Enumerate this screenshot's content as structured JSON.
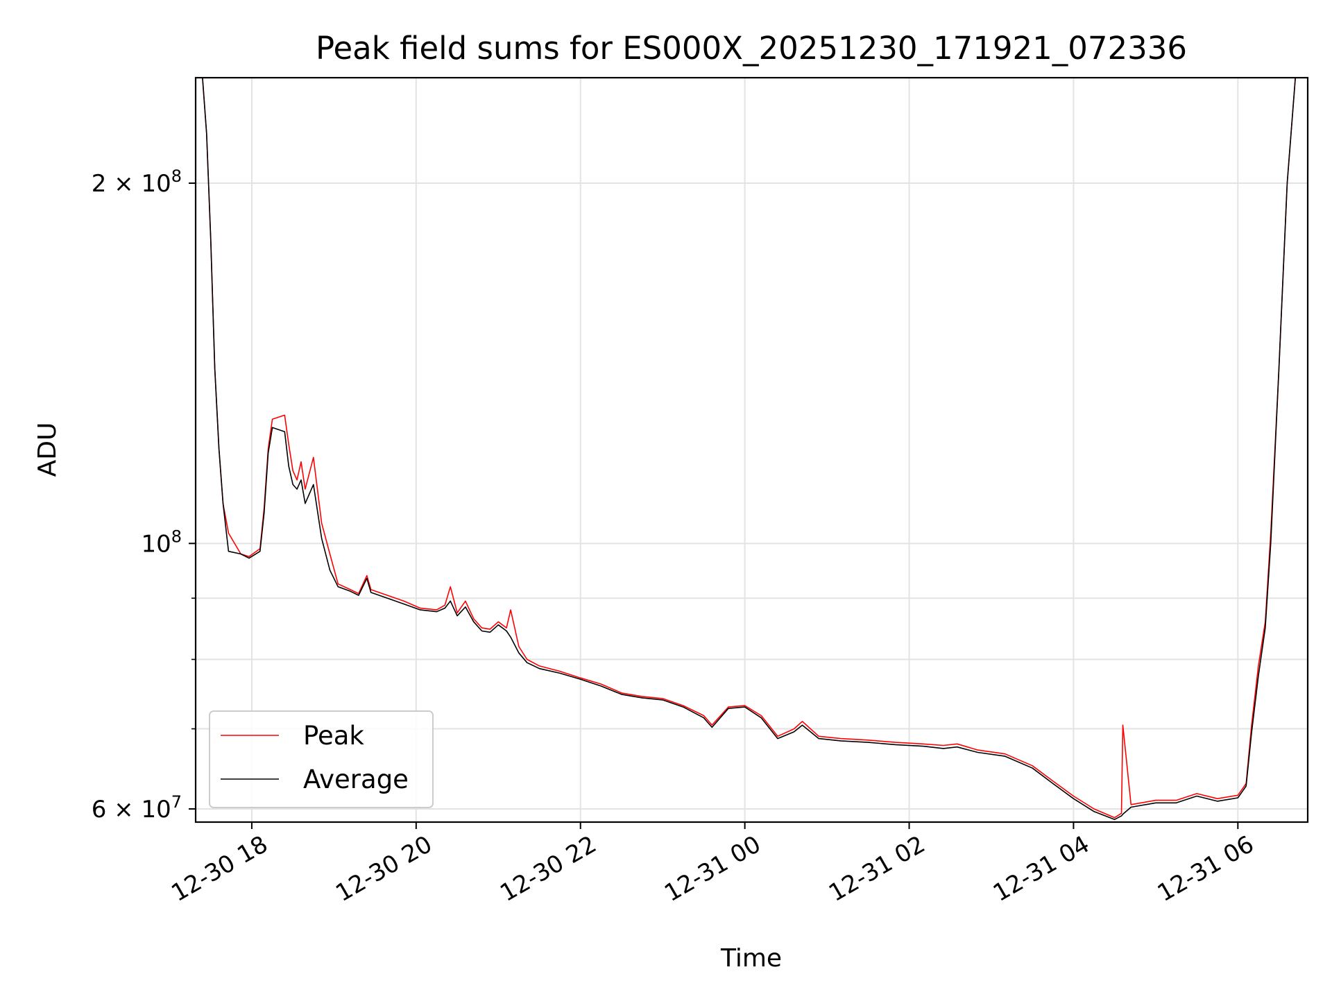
{
  "chart_data": {
    "type": "line",
    "title": "Peak field sums for ES000X_20251230_171921_072336",
    "xlabel": "Time",
    "ylabel": "ADU",
    "yscale": "log",
    "ylim": [
      58500000,
      245000000
    ],
    "xlim": [
      "2025-12-30 17:19",
      "2025-12-31 06:51"
    ],
    "grid": true,
    "legend_position": "lower-left",
    "x_ticks": [
      {
        "x": "2025-12-30 18:00",
        "label": "12-30 18"
      },
      {
        "x": "2025-12-30 20:00",
        "label": "12-30 20"
      },
      {
        "x": "2025-12-30 22:00",
        "label": "12-30 22"
      },
      {
        "x": "2025-12-31 00:00",
        "label": "12-31 00"
      },
      {
        "x": "2025-12-31 02:00",
        "label": "12-31 02"
      },
      {
        "x": "2025-12-31 04:00",
        "label": "12-31 04"
      },
      {
        "x": "2025-12-31 06:00",
        "label": "12-31 06"
      }
    ],
    "y_ticks": [
      {
        "value": 60000000,
        "label": "6 × 10",
        "exp": "7"
      },
      {
        "value": 100000000,
        "label": "10",
        "exp": "8"
      },
      {
        "value": 200000000,
        "label": "2 × 10",
        "exp": "8"
      }
    ],
    "y_minor_ticks": [
      70000000,
      80000000,
      90000000
    ],
    "series": [
      {
        "name": "Peak",
        "color": "#ff0000",
        "points": [
          [
            "2025-12-30 17:24",
            245000000
          ],
          [
            "2025-12-30 17:27",
            220000000
          ],
          [
            "2025-12-30 17:30",
            180000000
          ],
          [
            "2025-12-30 17:33",
            140000000
          ],
          [
            "2025-12-30 17:36",
            120000000
          ],
          [
            "2025-12-30 17:39",
            108000000
          ],
          [
            "2025-12-30 17:43",
            102000000
          ],
          [
            "2025-12-30 17:52",
            98000000
          ],
          [
            "2025-12-30 17:58",
            97500000
          ],
          [
            "2025-12-30 18:06",
            99000000
          ],
          [
            "2025-12-30 18:09",
            107000000
          ],
          [
            "2025-12-30 18:12",
            120000000
          ],
          [
            "2025-12-30 18:15",
            127000000
          ],
          [
            "2025-12-30 18:24",
            128000000
          ],
          [
            "2025-12-30 18:27",
            121000000
          ],
          [
            "2025-12-30 18:30",
            115000000
          ],
          [
            "2025-12-30 18:33",
            113000000
          ],
          [
            "2025-12-30 18:36",
            117000000
          ],
          [
            "2025-12-30 18:39",
            111000000
          ],
          [
            "2025-12-30 18:45",
            118000000
          ],
          [
            "2025-12-30 18:51",
            104000000
          ],
          [
            "2025-12-30 18:57",
            98000000
          ],
          [
            "2025-12-30 19:03",
            92500000
          ],
          [
            "2025-12-30 19:12",
            91500000
          ],
          [
            "2025-12-30 19:18",
            90800000
          ],
          [
            "2025-12-30 19:24",
            94000000
          ],
          [
            "2025-12-30 19:27",
            91500000
          ],
          [
            "2025-12-30 19:39",
            90500000
          ],
          [
            "2025-12-30 19:51",
            89500000
          ],
          [
            "2025-12-30 20:03",
            88300000
          ],
          [
            "2025-12-30 20:15",
            88000000
          ],
          [
            "2025-12-30 20:21",
            88800000
          ],
          [
            "2025-12-30 20:25",
            92000000
          ],
          [
            "2025-12-30 20:30",
            87500000
          ],
          [
            "2025-12-30 20:36",
            89500000
          ],
          [
            "2025-12-30 20:42",
            86500000
          ],
          [
            "2025-12-30 20:48",
            85000000
          ],
          [
            "2025-12-30 20:54",
            84800000
          ],
          [
            "2025-12-30 21:00",
            86000000
          ],
          [
            "2025-12-30 21:06",
            85000000
          ],
          [
            "2025-12-30 21:09",
            88000000
          ],
          [
            "2025-12-30 21:15",
            82000000
          ],
          [
            "2025-12-30 21:21",
            80000000
          ],
          [
            "2025-12-30 21:30",
            79000000
          ],
          [
            "2025-12-30 21:45",
            78200000
          ],
          [
            "2025-12-30 22:00",
            77200000
          ],
          [
            "2025-12-30 22:15",
            76300000
          ],
          [
            "2025-12-30 22:30",
            75000000
          ],
          [
            "2025-12-30 22:45",
            74500000
          ],
          [
            "2025-12-30 23:00",
            74200000
          ],
          [
            "2025-12-30 23:15",
            73200000
          ],
          [
            "2025-12-30 23:30",
            71800000
          ],
          [
            "2025-12-30 23:36",
            70500000
          ],
          [
            "2025-12-30 23:48",
            73000000
          ],
          [
            "2025-12-31 00:00",
            73200000
          ],
          [
            "2025-12-31 00:12",
            71800000
          ],
          [
            "2025-12-31 00:24",
            69000000
          ],
          [
            "2025-12-31 00:36",
            70000000
          ],
          [
            "2025-12-31 00:42",
            71000000
          ],
          [
            "2025-12-31 00:54",
            69000000
          ],
          [
            "2025-12-31 01:10",
            68700000
          ],
          [
            "2025-12-31 01:30",
            68500000
          ],
          [
            "2025-12-31 01:50",
            68200000
          ],
          [
            "2025-12-31 02:10",
            68000000
          ],
          [
            "2025-12-31 02:25",
            67800000
          ],
          [
            "2025-12-31 02:35",
            68000000
          ],
          [
            "2025-12-31 02:50",
            67200000
          ],
          [
            "2025-12-31 03:10",
            66700000
          ],
          [
            "2025-12-31 03:30",
            65200000
          ],
          [
            "2025-12-31 03:45",
            63300000
          ],
          [
            "2025-12-31 04:00",
            61500000
          ],
          [
            "2025-12-31 04:15",
            60000000
          ],
          [
            "2025-12-31 04:30",
            59000000
          ],
          [
            "2025-12-31 04:35",
            59500000
          ],
          [
            "2025-12-31 04:36",
            70500000
          ],
          [
            "2025-12-31 04:42",
            60500000
          ],
          [
            "2025-12-31 05:00",
            61000000
          ],
          [
            "2025-12-31 05:15",
            61000000
          ],
          [
            "2025-12-31 05:30",
            61800000
          ],
          [
            "2025-12-31 05:45",
            61200000
          ],
          [
            "2025-12-31 06:00",
            61600000
          ],
          [
            "2025-12-31 06:06",
            63000000
          ],
          [
            "2025-12-31 06:10",
            70500000
          ],
          [
            "2025-12-31 06:15",
            79000000
          ],
          [
            "2025-12-31 06:20",
            86000000
          ],
          [
            "2025-12-31 06:24",
            102000000
          ],
          [
            "2025-12-31 06:30",
            140000000
          ],
          [
            "2025-12-31 06:36",
            200000000
          ],
          [
            "2025-12-31 06:42",
            245000000
          ]
        ]
      },
      {
        "name": "Average",
        "color": "#000000",
        "points": [
          [
            "2025-12-30 17:24",
            245000000
          ],
          [
            "2025-12-30 17:27",
            220000000
          ],
          [
            "2025-12-30 17:30",
            180000000
          ],
          [
            "2025-12-30 17:33",
            140000000
          ],
          [
            "2025-12-30 17:36",
            120000000
          ],
          [
            "2025-12-30 17:39",
            108000000
          ],
          [
            "2025-12-30 17:43",
            98500000
          ],
          [
            "2025-12-30 17:52",
            98000000
          ],
          [
            "2025-12-30 17:58",
            97200000
          ],
          [
            "2025-12-30 18:06",
            98500000
          ],
          [
            "2025-12-30 18:09",
            106000000
          ],
          [
            "2025-12-30 18:12",
            119000000
          ],
          [
            "2025-12-30 18:15",
            125000000
          ],
          [
            "2025-12-30 18:24",
            124000000
          ],
          [
            "2025-12-30 18:27",
            116000000
          ],
          [
            "2025-12-30 18:30",
            112000000
          ],
          [
            "2025-12-30 18:33",
            111000000
          ],
          [
            "2025-12-30 18:36",
            113000000
          ],
          [
            "2025-12-30 18:39",
            108000000
          ],
          [
            "2025-12-30 18:45",
            112000000
          ],
          [
            "2025-12-30 18:51",
            101000000
          ],
          [
            "2025-12-30 18:57",
            95000000
          ],
          [
            "2025-12-30 19:03",
            92000000
          ],
          [
            "2025-12-30 19:12",
            91200000
          ],
          [
            "2025-12-30 19:18",
            90500000
          ],
          [
            "2025-12-30 19:24",
            93500000
          ],
          [
            "2025-12-30 19:27",
            91000000
          ],
          [
            "2025-12-30 19:39",
            90000000
          ],
          [
            "2025-12-30 19:51",
            89000000
          ],
          [
            "2025-12-30 20:03",
            88000000
          ],
          [
            "2025-12-30 20:15",
            87700000
          ],
          [
            "2025-12-30 20:21",
            88300000
          ],
          [
            "2025-12-30 20:25",
            89500000
          ],
          [
            "2025-12-30 20:30",
            87000000
          ],
          [
            "2025-12-30 20:36",
            88500000
          ],
          [
            "2025-12-30 20:42",
            86000000
          ],
          [
            "2025-12-30 20:48",
            84500000
          ],
          [
            "2025-12-30 20:54",
            84300000
          ],
          [
            "2025-12-30 21:00",
            85500000
          ],
          [
            "2025-12-30 21:06",
            84500000
          ],
          [
            "2025-12-30 21:09",
            83500000
          ],
          [
            "2025-12-30 21:15",
            81000000
          ],
          [
            "2025-12-30 21:21",
            79500000
          ],
          [
            "2025-12-30 21:30",
            78600000
          ],
          [
            "2025-12-30 21:45",
            77900000
          ],
          [
            "2025-12-30 22:00",
            77000000
          ],
          [
            "2025-12-30 22:15",
            76000000
          ],
          [
            "2025-12-30 22:30",
            74800000
          ],
          [
            "2025-12-30 22:45",
            74300000
          ],
          [
            "2025-12-30 23:00",
            74000000
          ],
          [
            "2025-12-30 23:15",
            73000000
          ],
          [
            "2025-12-30 23:30",
            71500000
          ],
          [
            "2025-12-30 23:36",
            70200000
          ],
          [
            "2025-12-30 23:48",
            72800000
          ],
          [
            "2025-12-31 00:00",
            73000000
          ],
          [
            "2025-12-31 00:12",
            71500000
          ],
          [
            "2025-12-31 00:24",
            68700000
          ],
          [
            "2025-12-31 00:36",
            69600000
          ],
          [
            "2025-12-31 00:42",
            70500000
          ],
          [
            "2025-12-31 00:54",
            68700000
          ],
          [
            "2025-12-31 01:10",
            68400000
          ],
          [
            "2025-12-31 01:30",
            68200000
          ],
          [
            "2025-12-31 01:50",
            67900000
          ],
          [
            "2025-12-31 02:10",
            67700000
          ],
          [
            "2025-12-31 02:25",
            67400000
          ],
          [
            "2025-12-31 02:35",
            67600000
          ],
          [
            "2025-12-31 02:50",
            66900000
          ],
          [
            "2025-12-31 03:10",
            66400000
          ],
          [
            "2025-12-31 03:30",
            64900000
          ],
          [
            "2025-12-31 03:45",
            63000000
          ],
          [
            "2025-12-31 04:00",
            61200000
          ],
          [
            "2025-12-31 04:15",
            59700000
          ],
          [
            "2025-12-31 04:30",
            58800000
          ],
          [
            "2025-12-31 04:35",
            59200000
          ],
          [
            "2025-12-31 04:36",
            59400000
          ],
          [
            "2025-12-31 04:42",
            60200000
          ],
          [
            "2025-12-31 05:00",
            60700000
          ],
          [
            "2025-12-31 05:15",
            60700000
          ],
          [
            "2025-12-31 05:30",
            61500000
          ],
          [
            "2025-12-31 05:45",
            60900000
          ],
          [
            "2025-12-31 06:00",
            61300000
          ],
          [
            "2025-12-31 06:06",
            62700000
          ],
          [
            "2025-12-31 06:10",
            69500000
          ],
          [
            "2025-12-31 06:15",
            77500000
          ],
          [
            "2025-12-31 06:20",
            85000000
          ],
          [
            "2025-12-31 06:24",
            100000000
          ],
          [
            "2025-12-31 06:30",
            140000000
          ],
          [
            "2025-12-31 06:36",
            200000000
          ],
          [
            "2025-12-31 06:42",
            245000000
          ]
        ]
      }
    ]
  }
}
